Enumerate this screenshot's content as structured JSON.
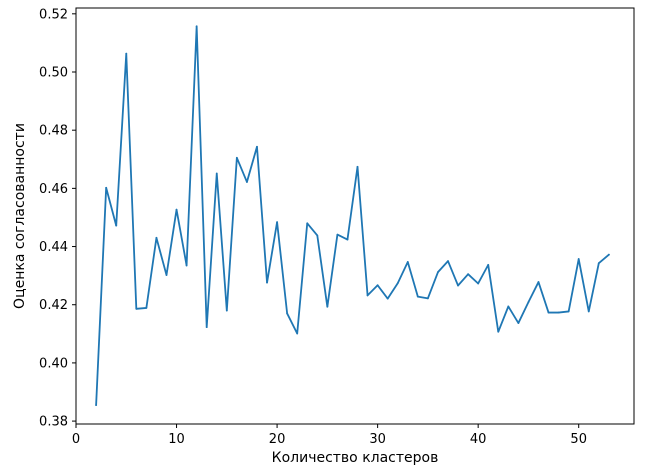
{
  "chart_data": {
    "type": "line",
    "title": "",
    "xlabel": "Количество кластеров",
    "ylabel": "Оценка согласованности",
    "xlim": [
      0,
      55.5
    ],
    "ylim": [
      0.379,
      0.522
    ],
    "x_ticks": [
      0,
      10,
      20,
      30,
      40,
      50
    ],
    "y_ticks": [
      0.38,
      0.4,
      0.42,
      0.44,
      0.46,
      0.48,
      0.5,
      0.52
    ],
    "grid": false,
    "legend": "none",
    "line_color": "#1f77b4",
    "series": [
      {
        "x": [
          2,
          3,
          4,
          5,
          6,
          7,
          8,
          9,
          10,
          11,
          12,
          13,
          14,
          15,
          16,
          17,
          18,
          19,
          20,
          21,
          22,
          23,
          24,
          25,
          26,
          27,
          28,
          29,
          30,
          31,
          32,
          33,
          34,
          35,
          36,
          37,
          38,
          39,
          40,
          41,
          42,
          43,
          44,
          45,
          46,
          47,
          48,
          49,
          50,
          51,
          52,
          53
        ],
        "values": [
          0.3855,
          0.4602,
          0.4472,
          0.5063,
          0.4186,
          0.4189,
          0.443,
          0.4302,
          0.4527,
          0.4335,
          0.5157,
          0.4123,
          0.4651,
          0.418,
          0.4705,
          0.4622,
          0.4743,
          0.4276,
          0.4484,
          0.417,
          0.4101,
          0.448,
          0.4438,
          0.4193,
          0.4441,
          0.4424,
          0.4674,
          0.4232,
          0.4267,
          0.4221,
          0.4274,
          0.4347,
          0.4228,
          0.4222,
          0.4312,
          0.435,
          0.4266,
          0.4305,
          0.4273,
          0.4337,
          0.4107,
          0.4194,
          0.4137,
          0.4209,
          0.4278,
          0.4173,
          0.4173,
          0.4177,
          0.4357,
          0.4177,
          0.4343,
          0.4372
        ]
      }
    ]
  }
}
